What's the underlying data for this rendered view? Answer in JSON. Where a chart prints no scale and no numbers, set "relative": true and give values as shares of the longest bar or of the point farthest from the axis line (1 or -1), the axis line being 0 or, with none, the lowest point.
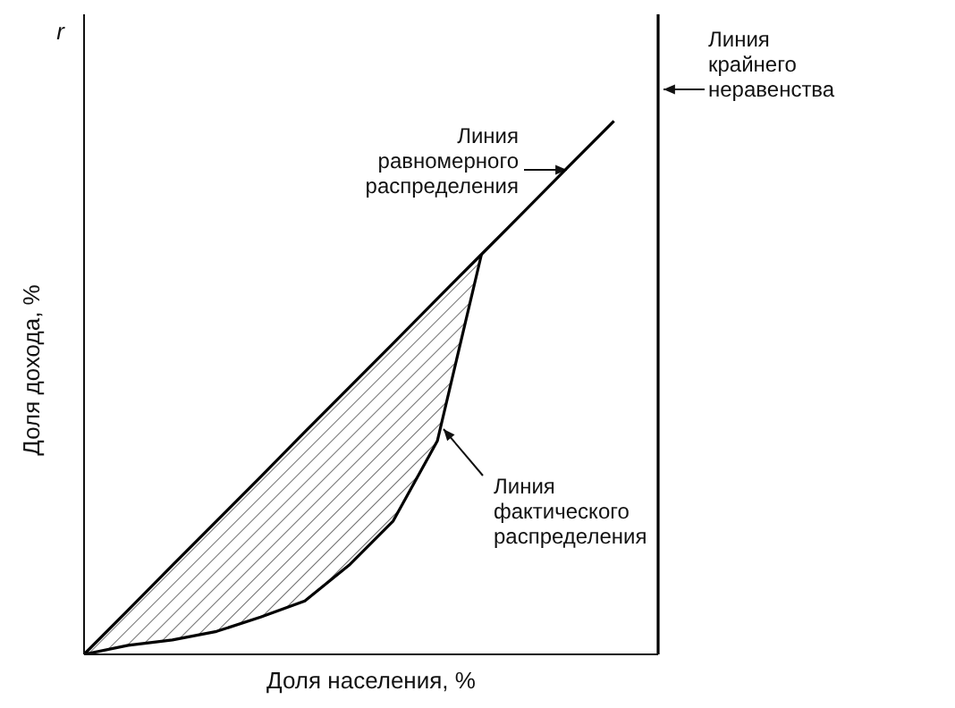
{
  "chart_data": {
    "type": "line",
    "relative": true,
    "xlabel": "Доля населения, %",
    "ylabel": "Доля дохода, %",
    "categories": [
      null,
      null,
      null,
      null,
      null,
      null,
      null,
      null,
      null,
      null,
      null,
      null,
      null,
      null
    ],
    "series": [
      {
        "color": "#000000",
        "values": [
          0,
          0.083,
          0.167,
          0.25,
          0.333,
          0.417,
          0.5,
          0.583,
          0.667,
          0.75,
          0.833,
          0.917,
          1,
          null
        ]
      },
      {
        "color": "#000000",
        "values": [
          0,
          0.017,
          0.027,
          0.043,
          0.07,
          0.1,
          0.167,
          0.25,
          0.4,
          0.75,
          null,
          null,
          null,
          null
        ]
      }
    ],
    "ref_lines": [
      {
        "axis": "x",
        "label": "Линия крайнего неравенства",
        "color": "#000000"
      }
    ],
    "annotations": [
      "r",
      "Линия равномерного распределения",
      "Линия фактического распределения"
    ]
  }
}
